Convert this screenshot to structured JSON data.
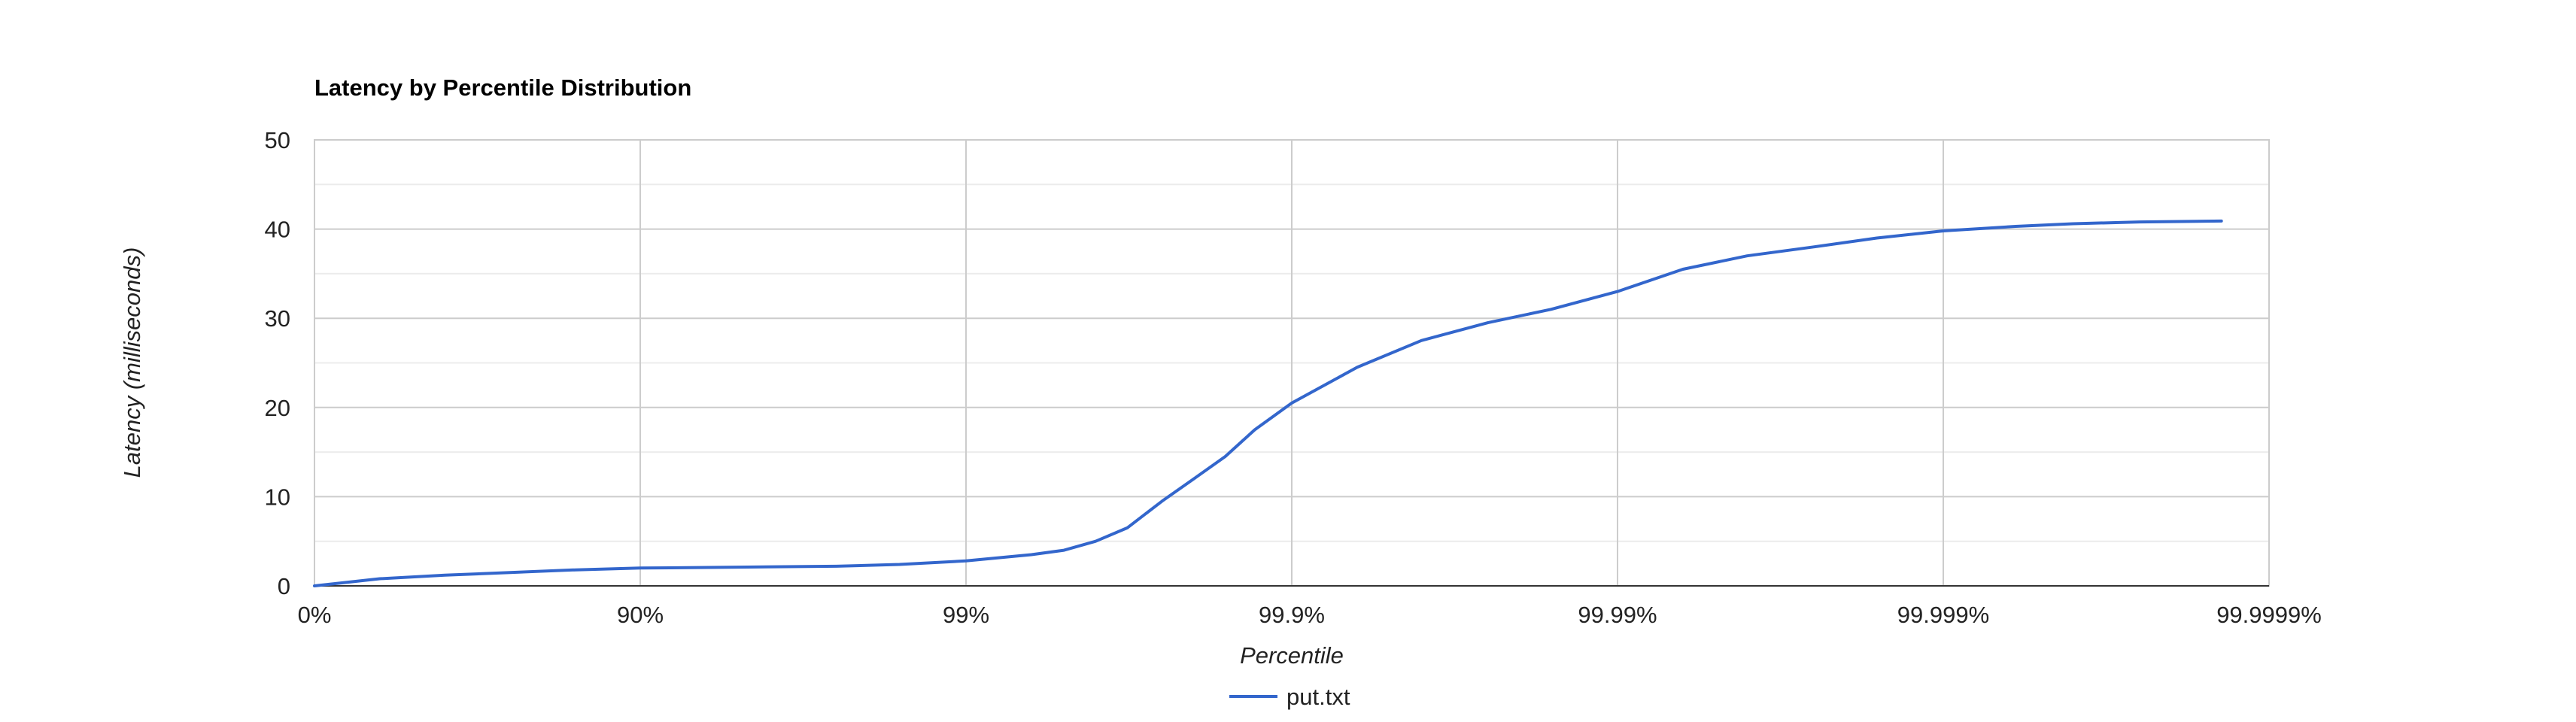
{
  "chart_data": {
    "type": "line",
    "title": "Latency by Percentile Distribution",
    "xlabel": "Percentile",
    "ylabel": "Latency (milliseconds)",
    "x_scale": "log of 1/(1-percentile)",
    "x_ticks": [
      "0%",
      "90%",
      "99%",
      "99.9%",
      "99.99%",
      "99.999%",
      "99.9999%"
    ],
    "x_tick_values": [
      0,
      90,
      99,
      99.9,
      99.99,
      99.999,
      99.9999
    ],
    "ylim": [
      0,
      50
    ],
    "y_ticks": [
      0,
      10,
      20,
      30,
      40,
      50
    ],
    "grid": true,
    "legend_position": "bottom",
    "series": [
      {
        "name": "put.txt",
        "color": "#3366cc",
        "points": [
          {
            "x": 0,
            "y": 0
          },
          {
            "x": 36.9,
            "y": 0.8
          },
          {
            "x": 60.2,
            "y": 1.2
          },
          {
            "x": 74.9,
            "y": 1.5
          },
          {
            "x": 84.2,
            "y": 1.8
          },
          {
            "x": 90,
            "y": 2.0
          },
          {
            "x": 95,
            "y": 2.1
          },
          {
            "x": 97.5,
            "y": 2.2
          },
          {
            "x": 98.4,
            "y": 2.4
          },
          {
            "x": 99,
            "y": 2.8
          },
          {
            "x": 99.37,
            "y": 3.5
          },
          {
            "x": 99.5,
            "y": 4.0
          },
          {
            "x": 99.6,
            "y": 5.0
          },
          {
            "x": 99.68,
            "y": 6.5
          },
          {
            "x": 99.75,
            "y": 9.5
          },
          {
            "x": 99.8,
            "y": 12.0
          },
          {
            "x": 99.84,
            "y": 14.5
          },
          {
            "x": 99.87,
            "y": 17.5
          },
          {
            "x": 99.9,
            "y": 20.5
          },
          {
            "x": 99.937,
            "y": 24.5
          },
          {
            "x": 99.96,
            "y": 27.5
          },
          {
            "x": 99.975,
            "y": 29.5
          },
          {
            "x": 99.984,
            "y": 31.0
          },
          {
            "x": 99.99,
            "y": 33.0
          },
          {
            "x": 99.9937,
            "y": 35.5
          },
          {
            "x": 99.996,
            "y": 37.0
          },
          {
            "x": 99.9975,
            "y": 38.0
          },
          {
            "x": 99.9984,
            "y": 39.0
          },
          {
            "x": 99.999,
            "y": 39.8
          },
          {
            "x": 99.9994,
            "y": 40.3
          },
          {
            "x": 99.9996,
            "y": 40.6
          },
          {
            "x": 99.99975,
            "y": 40.8
          },
          {
            "x": 99.99986,
            "y": 40.9
          }
        ]
      }
    ]
  }
}
